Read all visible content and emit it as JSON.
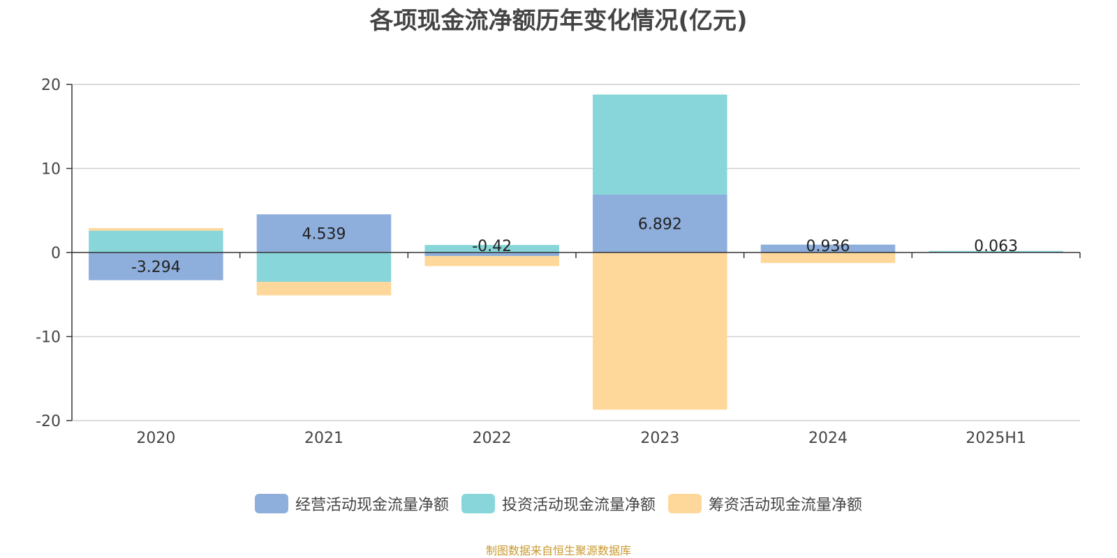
{
  "chart_data": {
    "type": "bar",
    "stacked": true,
    "title": "各项现金流净额历年变化情况(亿元)",
    "categories": [
      "2020",
      "2021",
      "2022",
      "2023",
      "2024",
      "2025H1"
    ],
    "series": [
      {
        "name": "经营活动现金流量净额",
        "color": "#8eaedc",
        "values": [
          -3.294,
          4.539,
          -0.42,
          6.892,
          0.936,
          0.063
        ]
      },
      {
        "name": "投资活动现金流量净额",
        "color": "#88d6d9",
        "values": [
          2.6,
          -3.5,
          0.9,
          11.9,
          -0.05,
          0.12
        ]
      },
      {
        "name": "筹资活动现金流量净额",
        "color": "#fed89a",
        "values": [
          0.3,
          -1.6,
          -1.2,
          -18.7,
          -1.2,
          -0.03
        ]
      }
    ],
    "data_labels": [
      "-3.294",
      "4.539",
      "-0.42",
      "6.892",
      "0.936",
      "0.063"
    ],
    "ylim": [
      -20,
      20
    ],
    "yticks": [
      20,
      10,
      0,
      -10,
      -20
    ],
    "grid": true,
    "legend_position": "bottom",
    "source": "制图数据来自恒生聚源数据库"
  }
}
